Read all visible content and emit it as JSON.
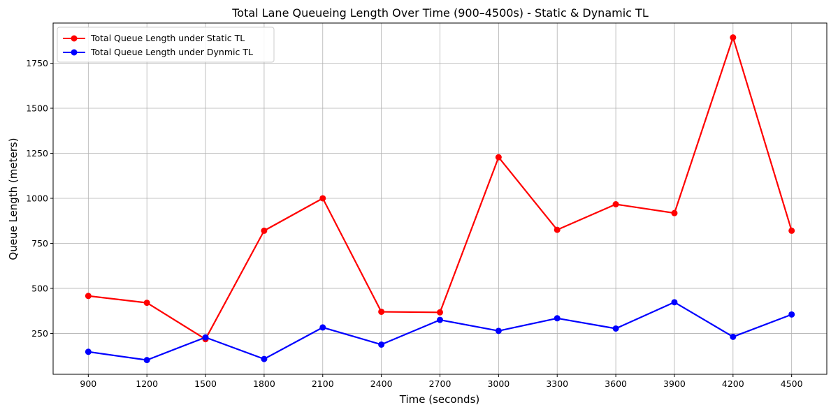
{
  "chart_data": {
    "type": "line",
    "title": "Total Lane Queueing Length Over Time (900–4500s) - Static & Dynamic TL",
    "xlabel": "Time (seconds)",
    "ylabel": "Queue Length (meters)",
    "x": [
      900,
      1200,
      1500,
      1800,
      2100,
      2400,
      2700,
      3000,
      3300,
      3600,
      3900,
      4200,
      4500
    ],
    "x_tick_labels": [
      "900",
      "1200",
      "1500",
      "1800",
      "2100",
      "2400",
      "2700",
      "3000",
      "3300",
      "3600",
      "3900",
      "4200",
      "4500"
    ],
    "y_ticks": [
      250,
      500,
      750,
      1000,
      1250,
      1500,
      1750
    ],
    "y_tick_labels": [
      "250",
      "500",
      "750",
      "1000",
      "1250",
      "1500",
      "1750"
    ],
    "ylim": [
      23,
      1973
    ],
    "xlim": [
      720,
      4680
    ],
    "grid": true,
    "legend_position": "top-left",
    "series": [
      {
        "name": "Total Queue Length under Static TL",
        "color": "#ff0000",
        "values": [
          458,
          420,
          218,
          820,
          1000,
          370,
          367,
          1228,
          825,
          967,
          918,
          1893,
          820
        ]
      },
      {
        "name": "Total Queue Length under Dynmic TL",
        "color": "#0000ff",
        "values": [
          148,
          102,
          228,
          108,
          283,
          188,
          325,
          264,
          334,
          277,
          423,
          231,
          355
        ]
      }
    ]
  }
}
